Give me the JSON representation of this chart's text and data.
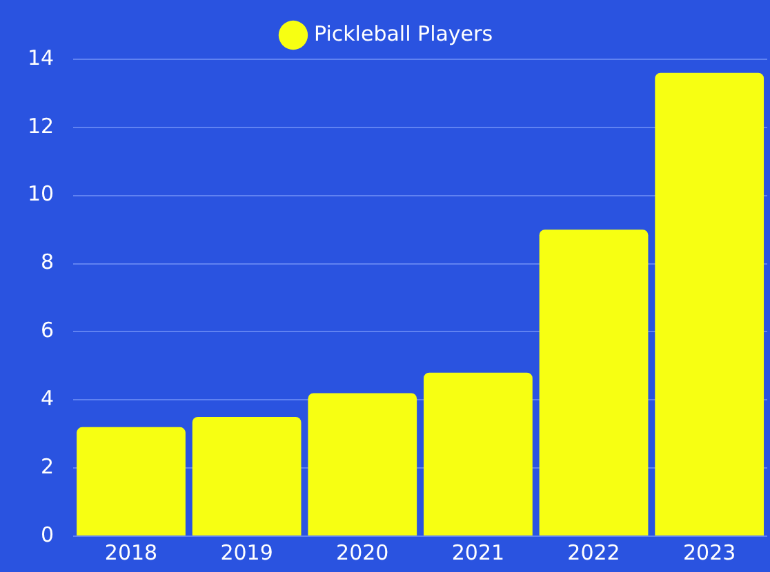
{
  "chart_data": {
    "type": "bar",
    "categories": [
      "2018",
      "2019",
      "2020",
      "2021",
      "2022",
      "2023"
    ],
    "series": [
      {
        "name": "Pickleball Players",
        "color": "#f7ff12",
        "values": [
          3.2,
          3.5,
          4.2,
          4.8,
          9.0,
          13.6
        ]
      }
    ],
    "ylim": [
      0,
      14
    ],
    "yticks": [
      0,
      2,
      4,
      6,
      8,
      10,
      12,
      14
    ],
    "grid": "y",
    "legend": "top"
  }
}
